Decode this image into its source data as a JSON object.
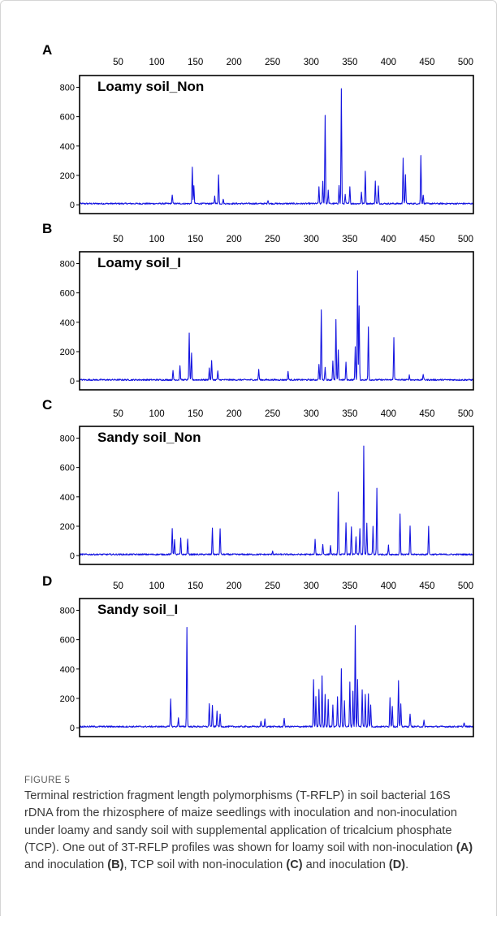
{
  "figure": {
    "label": "FIGURE 5",
    "caption_parts": [
      {
        "text": "Terminal restriction fragment length polymorphisms (T-RFLP) in soil bacterial 16S rDNA from the rhizosphere of maize seedlings with inoculation and non-inoculation under loamy and sandy soil with supplemental application of tricalcium phosphate (TCP). One out of 3T-RFLP profiles was shown for loamy soil with non-inoculation ",
        "bold": false
      },
      {
        "text": "(A)",
        "bold": true
      },
      {
        "text": " and inoculation ",
        "bold": false
      },
      {
        "text": "(B)",
        "bold": true
      },
      {
        "text": ", TCP soil with non-inoculation ",
        "bold": false
      },
      {
        "text": "(C)",
        "bold": true
      },
      {
        "text": " and inoculation ",
        "bold": false
      },
      {
        "text": "(D)",
        "bold": true
      },
      {
        "text": ".",
        "bold": false
      }
    ]
  },
  "colors": {
    "trace": "#1414e0",
    "axis": "#000000"
  },
  "chart_data": [
    {
      "type": "line",
      "panel": "A",
      "title": "Loamy soil_Non",
      "x_ticks": [
        50,
        100,
        150,
        200,
        250,
        300,
        350,
        400,
        450,
        500
      ],
      "y_ticks": [
        0,
        200,
        400,
        600,
        800
      ],
      "xlim": [
        0,
        510
      ],
      "ylim": [
        -60,
        880
      ],
      "baseline": 8,
      "peaks": [
        [
          120,
          60
        ],
        [
          146,
          245
        ],
        [
          148,
          120
        ],
        [
          175,
          50
        ],
        [
          180,
          195
        ],
        [
          186,
          30
        ],
        [
          244,
          25
        ],
        [
          310,
          110
        ],
        [
          315,
          150
        ],
        [
          318,
          605
        ],
        [
          322,
          90
        ],
        [
          336,
          120
        ],
        [
          339,
          780
        ],
        [
          344,
          60
        ],
        [
          350,
          120
        ],
        [
          365,
          80
        ],
        [
          370,
          225
        ],
        [
          383,
          150
        ],
        [
          387,
          120
        ],
        [
          419,
          310
        ],
        [
          422,
          200
        ],
        [
          442,
          330
        ],
        [
          445,
          60
        ]
      ]
    },
    {
      "type": "line",
      "panel": "B",
      "title": "Loamy soil_I",
      "x_ticks": [
        50,
        100,
        150,
        200,
        250,
        300,
        350,
        400,
        450,
        500
      ],
      "y_ticks": [
        0,
        200,
        400,
        600,
        800
      ],
      "xlim": [
        0,
        510
      ],
      "ylim": [
        -60,
        880
      ],
      "baseline": 8,
      "peaks": [
        [
          121,
          60
        ],
        [
          130,
          100
        ],
        [
          142,
          320
        ],
        [
          145,
          180
        ],
        [
          168,
          80
        ],
        [
          171,
          135
        ],
        [
          179,
          60
        ],
        [
          232,
          70
        ],
        [
          270,
          60
        ],
        [
          310,
          110
        ],
        [
          313,
          480
        ],
        [
          318,
          90
        ],
        [
          328,
          130
        ],
        [
          332,
          410
        ],
        [
          335,
          200
        ],
        [
          345,
          120
        ],
        [
          357,
          230
        ],
        [
          360,
          740
        ],
        [
          362,
          500
        ],
        [
          374,
          360
        ],
        [
          407,
          290
        ],
        [
          427,
          30
        ],
        [
          445,
          40
        ]
      ]
    },
    {
      "type": "line",
      "panel": "C",
      "title": "Sandy soil_Non",
      "x_ticks": [
        50,
        100,
        150,
        200,
        250,
        300,
        350,
        400,
        450,
        500
      ],
      "y_ticks": [
        0,
        200,
        400,
        600,
        800
      ],
      "xlim": [
        0,
        510
      ],
      "ylim": [
        -60,
        880
      ],
      "baseline": 8,
      "peaks": [
        [
          120,
          180
        ],
        [
          123,
          100
        ],
        [
          131,
          110
        ],
        [
          140,
          100
        ],
        [
          172,
          180
        ],
        [
          182,
          175
        ],
        [
          250,
          25
        ],
        [
          305,
          100
        ],
        [
          315,
          70
        ],
        [
          325,
          60
        ],
        [
          335,
          420
        ],
        [
          345,
          220
        ],
        [
          352,
          190
        ],
        [
          358,
          120
        ],
        [
          363,
          180
        ],
        [
          368,
          740
        ],
        [
          372,
          210
        ],
        [
          380,
          190
        ],
        [
          385,
          450
        ],
        [
          400,
          60
        ],
        [
          415,
          280
        ],
        [
          428,
          190
        ],
        [
          452,
          190
        ]
      ]
    },
    {
      "type": "line",
      "panel": "D",
      "title": "Sandy soil_I",
      "x_ticks": [
        50,
        100,
        150,
        200,
        250,
        300,
        350,
        400,
        450,
        500
      ],
      "y_ticks": [
        0,
        200,
        400,
        600,
        800
      ],
      "xlim": [
        0,
        510
      ],
      "ylim": [
        -60,
        880
      ],
      "baseline": 8,
      "peaks": [
        [
          118,
          190
        ],
        [
          128,
          60
        ],
        [
          139,
          680
        ],
        [
          168,
          160
        ],
        [
          172,
          140
        ],
        [
          178,
          110
        ],
        [
          182,
          80
        ],
        [
          235,
          40
        ],
        [
          240,
          50
        ],
        [
          265,
          60
        ],
        [
          303,
          320
        ],
        [
          306,
          200
        ],
        [
          310,
          250
        ],
        [
          314,
          350
        ],
        [
          318,
          220
        ],
        [
          322,
          180
        ],
        [
          328,
          150
        ],
        [
          334,
          200
        ],
        [
          339,
          390
        ],
        [
          343,
          180
        ],
        [
          350,
          300
        ],
        [
          354,
          240
        ],
        [
          357,
          690
        ],
        [
          360,
          320
        ],
        [
          366,
          250
        ],
        [
          370,
          220
        ],
        [
          374,
          220
        ],
        [
          377,
          150
        ],
        [
          402,
          200
        ],
        [
          405,
          140
        ],
        [
          413,
          310
        ],
        [
          416,
          150
        ],
        [
          428,
          90
        ],
        [
          446,
          40
        ],
        [
          498,
          30
        ]
      ]
    }
  ]
}
